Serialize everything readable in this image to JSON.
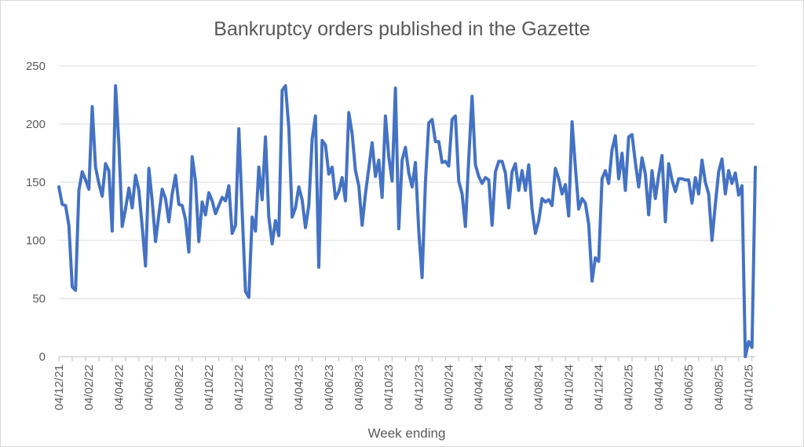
{
  "chart_data": {
    "type": "line",
    "title": "Bankruptcy orders published in the Gazette",
    "xlabel": "Week ending",
    "ylabel": "",
    "ylim": [
      0,
      250
    ],
    "yticks": [
      0,
      50,
      100,
      150,
      200,
      250
    ],
    "grid": true,
    "legend": "none",
    "color": "#4472C4",
    "x_tick_labels": [
      "04/12/21",
      "04/02/22",
      "04/04/22",
      "04/06/22",
      "04/08/22",
      "04/10/22",
      "04/12/22",
      "04/02/23",
      "04/04/23",
      "04/06/23",
      "04/08/23",
      "04/10/23",
      "04/12/23",
      "04/02/24",
      "04/04/24",
      "04/06/24",
      "04/08/24",
      "04/10/24",
      "04/12/24",
      "04/02/25",
      "04/04/25",
      "04/06/25",
      "04/08/25",
      "04/10/25"
    ],
    "x_start": "04/12/21",
    "values": [
      146,
      131,
      130,
      113,
      60,
      57,
      143,
      159,
      152,
      144,
      215,
      163,
      149,
      138,
      166,
      160,
      108,
      233,
      183,
      112,
      127,
      145,
      128,
      156,
      143,
      112,
      78,
      162,
      134,
      99,
      122,
      144,
      136,
      116,
      140,
      156,
      131,
      130,
      118,
      90,
      172,
      151,
      99,
      133,
      122,
      141,
      134,
      123,
      130,
      137,
      134,
      147,
      106,
      113,
      196,
      125,
      56,
      51,
      120,
      108,
      163,
      135,
      189,
      120,
      97,
      117,
      104,
      229,
      233,
      197,
      120,
      128,
      146,
      135,
      111,
      130,
      187,
      207,
      77,
      186,
      182,
      157,
      163,
      136,
      142,
      154,
      134,
      210,
      192,
      160,
      147,
      113,
      140,
      162,
      184,
      155,
      169,
      137,
      207,
      172,
      151,
      231,
      110,
      169,
      180,
      158,
      146,
      167,
      108,
      68,
      150,
      201,
      204,
      185,
      185,
      167,
      168,
      164,
      204,
      207,
      151,
      140,
      112,
      170,
      224,
      165,
      155,
      149,
      154,
      152,
      113,
      159,
      168,
      168,
      158,
      128,
      159,
      166,
      143,
      160,
      143,
      165,
      127,
      106,
      117,
      136,
      133,
      135,
      130,
      162,
      153,
      140,
      148,
      121,
      202,
      163,
      127,
      136,
      132,
      114,
      65,
      85,
      82,
      153,
      160,
      149,
      178,
      190,
      153,
      175,
      143,
      189,
      191,
      167,
      146,
      171,
      157,
      122,
      160,
      136,
      156,
      173,
      116,
      166,
      152,
      142,
      153,
      153,
      152,
      152,
      132,
      154,
      140,
      169,
      150,
      140,
      100,
      131,
      159,
      170,
      140,
      160,
      149,
      158,
      139,
      147,
      0,
      13,
      8,
      163
    ]
  }
}
